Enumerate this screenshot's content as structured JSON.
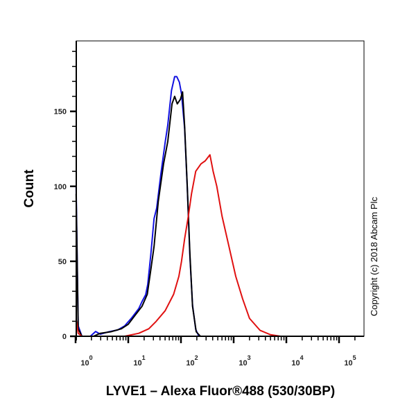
{
  "chart_data": {
    "type": "line",
    "title": "",
    "xlabel": "LYVE1 – Alexa Fluor®488 (530/30BP)",
    "ylabel": "Count",
    "xscale": "log",
    "xlim_log10": [
      0,
      5.47
    ],
    "ylim": [
      0,
      197
    ],
    "x_ticks": [
      {
        "base": "10",
        "exp": "0",
        "log10": 0
      },
      {
        "base": "10",
        "exp": "1",
        "log10": 1
      },
      {
        "base": "10",
        "exp": "2",
        "log10": 2
      },
      {
        "base": "10",
        "exp": "3",
        "log10": 3
      },
      {
        "base": "10",
        "exp": "4",
        "log10": 4
      },
      {
        "base": "10",
        "exp": "5",
        "log10": 5
      }
    ],
    "y_ticks": [
      "0",
      "50",
      "100",
      "150"
    ],
    "grid": false,
    "legend": null,
    "annotation": "Copyright (c) 2018 Abcam Plc",
    "series": [
      {
        "name": "blue",
        "color": "#1010e0",
        "log10_x": [
          0.01,
          0.05,
          0.12,
          0.28,
          0.38,
          0.47,
          0.61,
          0.8,
          0.93,
          1.07,
          1.2,
          1.26,
          1.33,
          1.37,
          1.43,
          1.49,
          1.54,
          1.62,
          1.7,
          1.75,
          1.82,
          1.88,
          1.92,
          1.97,
          2.01,
          2.07,
          2.12,
          2.17,
          2.22,
          2.28,
          2.34,
          5.47
        ],
        "counts": [
          99.8,
          6.9,
          0,
          0,
          3.2,
          1.4,
          2.8,
          4.2,
          6.9,
          12.5,
          18.5,
          23.1,
          27.7,
          34.6,
          55.4,
          78.5,
          85.5,
          108.5,
          129.3,
          140.9,
          163.9,
          173.2,
          173.2,
          169.5,
          161.7,
          138.6,
          99.3,
          53.1,
          20.8,
          4.6,
          0,
          0
        ]
      },
      {
        "name": "black",
        "color": "#000000",
        "log10_x": [
          0.01,
          0.05,
          0.12,
          0.34,
          0.47,
          0.67,
          0.87,
          1.0,
          1.13,
          1.26,
          1.36,
          1.43,
          1.49,
          1.57,
          1.67,
          1.75,
          1.83,
          1.88,
          1.93,
          1.99,
          2.03,
          2.07,
          2.12,
          2.17,
          2.22,
          2.29,
          2.37,
          5.47
        ],
        "counts": [
          95,
          5,
          0,
          0,
          2,
          3,
          5,
          8,
          14,
          20,
          28,
          45,
          60,
          90,
          115,
          130,
          155,
          160,
          155,
          158,
          163,
          140,
          100,
          55,
          20,
          3,
          0,
          0
        ]
      },
      {
        "name": "red",
        "color": "#e01010",
        "log10_x": [
          0.01,
          0.05,
          0.12,
          0.93,
          1.2,
          1.39,
          1.53,
          1.7,
          1.86,
          1.96,
          2.01,
          2.07,
          2.14,
          2.2,
          2.28,
          2.38,
          2.46,
          2.55,
          2.61,
          2.68,
          2.78,
          2.91,
          3.04,
          3.17,
          3.3,
          3.5,
          3.7,
          3.89,
          5.47
        ],
        "counts": [
          11.5,
          2,
          0,
          0,
          2,
          5,
          10,
          17,
          28,
          40,
          50,
          65,
          80,
          95,
          110,
          115,
          117,
          121,
          110,
          100,
          80,
          60,
          40,
          25,
          12,
          4,
          1,
          0,
          0
        ]
      }
    ]
  }
}
